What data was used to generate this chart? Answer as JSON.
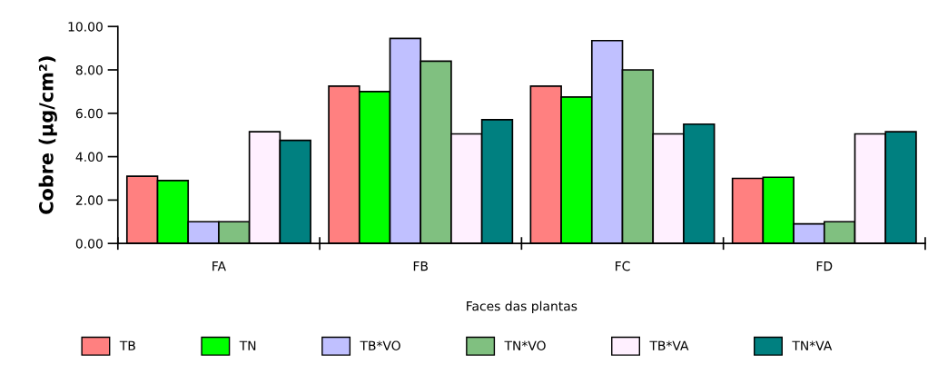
{
  "chart_data": {
    "type": "bar",
    "xlabel": "Faces das plantas",
    "ylabel": "Cobre (µg/cm²)",
    "categories": [
      "FA",
      "FB",
      "FC",
      "FD"
    ],
    "series": [
      {
        "name": "TB",
        "color": "#ff8080",
        "values": [
          3.1,
          7.25,
          7.25,
          3.0
        ]
      },
      {
        "name": "TN",
        "color": "#00ff00",
        "values": [
          2.9,
          7.0,
          6.75,
          3.05
        ]
      },
      {
        "name": "TB*VO",
        "color": "#c0c0ff",
        "values": [
          1.0,
          9.45,
          9.35,
          0.9
        ]
      },
      {
        "name": "TN*VO",
        "color": "#80c080",
        "values": [
          1.0,
          8.4,
          8.0,
          1.0
        ]
      },
      {
        "name": "TB*VA",
        "color": "#fff0ff",
        "values": [
          5.15,
          5.05,
          5.05,
          5.05
        ]
      },
      {
        "name": "TN*VA",
        "color": "#008080",
        "values": [
          4.75,
          5.7,
          5.5,
          5.15
        ]
      }
    ],
    "ylim": [
      0,
      10
    ],
    "yticks": [
      {
        "value": 0,
        "label": "0.00"
      },
      {
        "value": 2,
        "label": "2.00"
      },
      {
        "value": 4,
        "label": "4.00"
      },
      {
        "value": 6,
        "label": "6.00"
      },
      {
        "value": 8,
        "label": "8.00"
      },
      {
        "value": 10,
        "label": "10.00"
      }
    ],
    "grid": false,
    "legend": "bottom"
  }
}
